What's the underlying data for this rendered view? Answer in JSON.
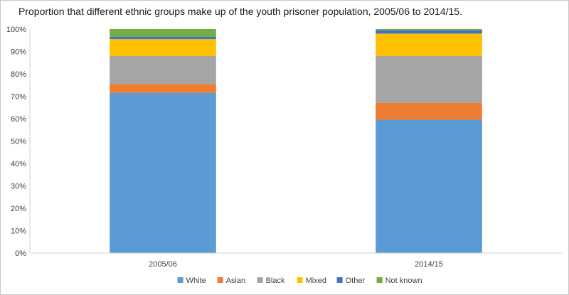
{
  "chart_data": {
    "type": "bar",
    "stacked": true,
    "title": "Proportion that different ethnic groups make up of the youth prisoner population, 2005/06 to 2014/15.",
    "categories": [
      "2005/06",
      "2014/15"
    ],
    "ylim": [
      0,
      100
    ],
    "yticks": [
      0,
      10,
      20,
      30,
      40,
      50,
      60,
      70,
      80,
      90,
      100
    ],
    "ytick_labels": [
      "0%",
      "10%",
      "20%",
      "30%",
      "40%",
      "50%",
      "60%",
      "70%",
      "80%",
      "90%",
      "100%"
    ],
    "grid": false,
    "legend_position": "bottom",
    "series": [
      {
        "name": "White",
        "color": "#5b9bd5",
        "values": [
          71.5,
          59.5
        ]
      },
      {
        "name": "Asian",
        "color": "#ed7d31",
        "values": [
          4,
          7.5
        ]
      },
      {
        "name": "Black",
        "color": "#a5a5a5",
        "values": [
          12.5,
          21
        ]
      },
      {
        "name": "Mixed",
        "color": "#ffc000",
        "values": [
          7.5,
          10
        ]
      },
      {
        "name": "Other",
        "color": "#4472c4",
        "values": [
          1,
          1.5
        ]
      },
      {
        "name": "Not known",
        "color": "#70ad47",
        "values": [
          3.5,
          0.5
        ]
      }
    ]
  }
}
